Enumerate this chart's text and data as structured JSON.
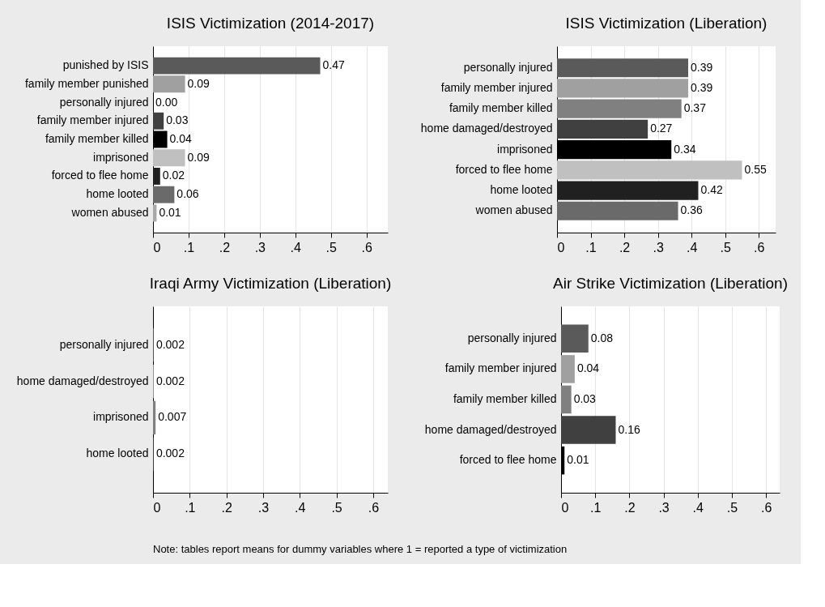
{
  "chart_data": [
    {
      "type": "bar",
      "orientation": "horizontal",
      "title": "ISIS Victimization (2014-2017)",
      "categories": [
        "punished by ISIS",
        "family member punished",
        "personally injured",
        "family member injured",
        "family member killed",
        "imprisoned",
        "forced to flee home",
        "home looted",
        "women abused"
      ],
      "values": [
        0.47,
        0.09,
        0,
        0.03,
        0.04,
        0.09,
        0.02,
        0.06,
        0.01
      ],
      "value_labels": [
        "0.47",
        "0.09",
        "0.00",
        "0.03",
        "0.04",
        "0.09",
        "0.02",
        "0.06",
        "0.01"
      ],
      "colors": [
        "#5a5a5a",
        "#a0a0a0",
        "#808080",
        "#404040",
        "#000000",
        "#c0c0c0",
        "#202020",
        "#6a6a6a",
        "#a8a8a8"
      ],
      "xlim": [
        0,
        0.66
      ],
      "xticks": [
        0,
        {
          "value": 0.1,
          "label": ".1"
        },
        {
          "value": 0.2,
          "label": ".2"
        },
        {
          "value": 0.3,
          "label": ".3"
        },
        {
          "value": 0.4,
          "label": ".4"
        },
        {
          "value": 0.5,
          "label": ".5"
        },
        {
          "value": 0.6,
          "label": ".6"
        }
      ],
      "grid": "x"
    },
    {
      "type": "bar",
      "orientation": "horizontal",
      "title": "ISIS Victimization (Liberation)",
      "categories": [
        "personally injured",
        "family member injured",
        "family member killed",
        "home damaged/destroyed",
        "imprisoned",
        "forced to flee home",
        "home looted",
        "women abused"
      ],
      "values": [
        0.39,
        0.39,
        0.37,
        0.27,
        0.34,
        0.55,
        0.42,
        0.36
      ],
      "value_labels": [
        "0.39",
        "0.39",
        "0.37",
        "0.27",
        "0.34",
        "0.55",
        "0.42",
        "0.36"
      ],
      "colors": [
        "#5a5a5a",
        "#a0a0a0",
        "#808080",
        "#404040",
        "#000000",
        "#c0c0c0",
        "#202020",
        "#6a6a6a"
      ],
      "xlim": [
        0,
        0.65
      ],
      "xticks": [
        0,
        {
          "value": 0.1,
          "label": ".1"
        },
        {
          "value": 0.2,
          "label": ".2"
        },
        {
          "value": 0.3,
          "label": ".3"
        },
        {
          "value": 0.4,
          "label": ".4"
        },
        {
          "value": 0.5,
          "label": ".5"
        },
        {
          "value": 0.6,
          "label": ".6"
        }
      ],
      "grid": "x"
    },
    {
      "type": "bar",
      "orientation": "horizontal",
      "title": "Iraqi Army Victimization (Liberation)",
      "categories": [
        "personally injured",
        "home damaged/destroyed",
        "imprisoned",
        "home looted"
      ],
      "values": [
        0.002,
        0.002,
        0.007,
        0.002
      ],
      "value_labels": [
        "0.002",
        "0.002",
        "0.007",
        "0.002"
      ],
      "colors": [
        "#5a5a5a",
        "#a0a0a0",
        "#808080",
        "#404040"
      ],
      "xlim": [
        0,
        0.64
      ],
      "xticks": [
        0,
        {
          "value": 0.1,
          "label": ".1"
        },
        {
          "value": 0.2,
          "label": ".2"
        },
        {
          "value": 0.3,
          "label": ".3"
        },
        {
          "value": 0.4,
          "label": ".4"
        },
        {
          "value": 0.5,
          "label": ".5"
        },
        {
          "value": 0.6,
          "label": ".6"
        }
      ],
      "grid": "x"
    },
    {
      "type": "bar",
      "orientation": "horizontal",
      "title": "Air Strike Victimization (Liberation)",
      "categories": [
        "personally injured",
        "family member injured",
        "family member killed",
        "home damaged/destroyed",
        "forced to flee home"
      ],
      "values": [
        0.08,
        0.04,
        0.03,
        0.16,
        0.01
      ],
      "value_labels": [
        "0.08",
        "0.04",
        "0.03",
        "0.16",
        "0.01"
      ],
      "colors": [
        "#5a5a5a",
        "#a0a0a0",
        "#808080",
        "#404040",
        "#000000"
      ],
      "xlim": [
        0,
        0.64
      ],
      "xticks": [
        0,
        {
          "value": 0.1,
          "label": ".1"
        },
        {
          "value": 0.2,
          "label": ".2"
        },
        {
          "value": 0.3,
          "label": ".3"
        },
        {
          "value": 0.4,
          "label": ".4"
        },
        {
          "value": 0.5,
          "label": ".5"
        },
        {
          "value": 0.6,
          "label": ".6"
        }
      ],
      "grid": "x",
      "annotations": [
        "Note: tables report means for dummy variables where 1 = reported a type of victimization"
      ]
    }
  ]
}
